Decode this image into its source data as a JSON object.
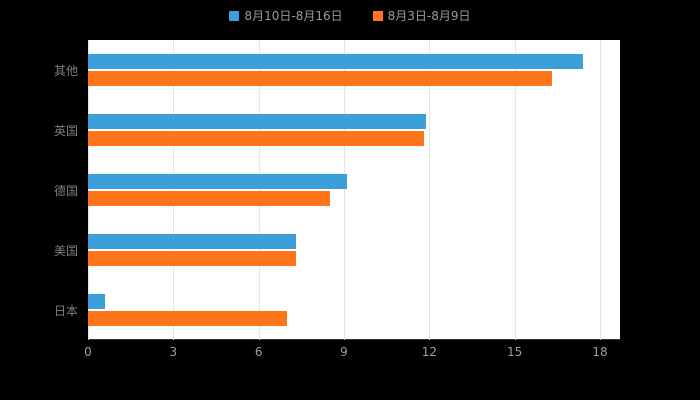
{
  "legend": {
    "items": [
      {
        "label": "8月10日-8月16日",
        "color": "#3BA0D9"
      },
      {
        "label": "8月3日-8月9日",
        "color": "#FF7519"
      }
    ]
  },
  "chart_data": {
    "type": "bar",
    "orientation": "horizontal",
    "title": "",
    "xlabel": "",
    "ylabel": "",
    "categories": [
      "其他",
      "英国",
      "德国",
      "美国",
      "日本"
    ],
    "series": [
      {
        "name": "8月10日-8月16日",
        "color": "#3BA0D9",
        "values": [
          17.4,
          11.9,
          9.1,
          7.3,
          0.6
        ]
      },
      {
        "name": "8月3日-8月9日",
        "color": "#FF7519",
        "values": [
          16.3,
          11.8,
          8.5,
          7.3,
          7.0
        ]
      }
    ],
    "xlim": [
      0,
      18
    ],
    "xticks": [
      0,
      3,
      6,
      9,
      12,
      15,
      18
    ],
    "grid": true,
    "legend_position": "top",
    "background": "#000000",
    "plot_background": "#ffffff",
    "category_label_color": "#7f7f7f",
    "tick_label_color": "#9e9e9e"
  }
}
